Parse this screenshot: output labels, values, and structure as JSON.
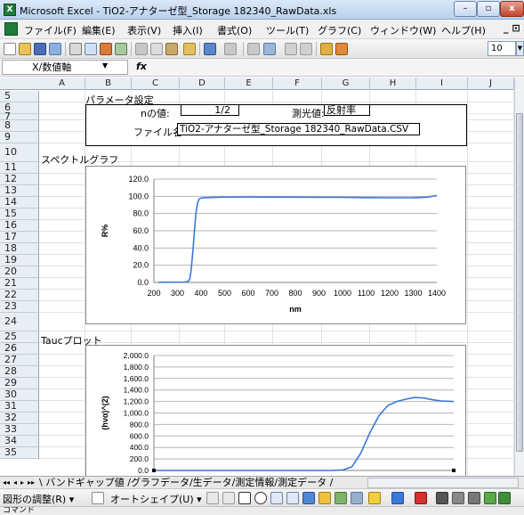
{
  "window": {
    "title": "Microsoft Excel - TiO2-アナターゼ型_Storage 182340_RawData.xls",
    "min_glyph": "–",
    "max_glyph": "▫",
    "close_glyph": "x"
  },
  "menubar": {
    "items": [
      "ファイル(F)",
      "編集(E)",
      "表示(V)",
      "挿入(I)",
      "書式(O)",
      "ツール(T)",
      "グラフ(C)",
      "ウィンドウ(W)",
      "ヘルプ(H)"
    ],
    "right_controls": "_ ⊡ x"
  },
  "toolbar": {
    "font_size": "10"
  },
  "formula_bar": {
    "name_box": "X/数値軸",
    "fx": "fx"
  },
  "columns": [
    "A",
    "B",
    "C",
    "D",
    "E",
    "F",
    "G",
    "H",
    "I",
    "J"
  ],
  "rows": [
    "5",
    "6",
    "7",
    "8",
    "9",
    "10",
    "11",
    "12",
    "13",
    "14",
    "15",
    "16",
    "17",
    "18",
    "19",
    "20",
    "21",
    "22",
    "23",
    "24",
    "25",
    "26",
    "27",
    "28",
    "29",
    "30",
    "31",
    "32",
    "33",
    "34",
    "35"
  ],
  "params": {
    "heading": "パラメータ設定",
    "n_label": "nの値:",
    "n_value": "1/2",
    "mode_label": "測光値:",
    "mode_value": "反射率",
    "file_label": "ファイル名:",
    "file_value": "TiO2-アナターゼ型_Storage 182340_RawData.CSV"
  },
  "spectrum_heading": "スペクトルグラフ",
  "tauc_heading": "Taucプロット",
  "sheet_tabs": {
    "nav": [
      "◂◂",
      "◂",
      "▸",
      "▸▸"
    ],
    "text": "\\ バンドギャップ値 /グラフデータ/生データ/測定情報/測定データ /"
  },
  "drawbar": {
    "adjust": "図形の調整(R) ▾",
    "autoshape": "オートシェイプ(U) ▾"
  },
  "status": "コマンド",
  "colors": {
    "series": "#3b78d8",
    "excel_green": "#1e7b3a"
  },
  "chart_data": [
    {
      "type": "line",
      "title": "",
      "xlabel": "nm",
      "ylabel": "R%",
      "xlim": [
        200,
        1400
      ],
      "ylim": [
        0,
        120
      ],
      "xticks": [
        "200",
        "300",
        "400",
        "500",
        "600",
        "700",
        "800",
        "900",
        "1000",
        "1100",
        "1200",
        "1300",
        "1400"
      ],
      "yticks": [
        "0.0",
        "20.0",
        "40.0",
        "60.0",
        "80.0",
        "100.0",
        "120.0"
      ],
      "x": [
        220,
        280,
        330,
        345,
        352,
        358,
        365,
        372,
        378,
        385,
        392,
        400,
        420,
        480,
        600,
        800,
        1000,
        1100,
        1200,
        1300,
        1360,
        1400
      ],
      "values": [
        0.2,
        0.3,
        0.5,
        1,
        4,
        15,
        35,
        60,
        80,
        92,
        97,
        98,
        98.5,
        99,
        99.2,
        99,
        98.8,
        98.5,
        98.3,
        98.4,
        99,
        101
      ]
    },
    {
      "type": "line",
      "title": "",
      "xlabel": "",
      "ylabel": "(hνα)^(2)",
      "ylim": [
        0,
        2000
      ],
      "yticks": [
        "0.0",
        "200.0",
        "400.0",
        "600.0",
        "800.0",
        "1,000.0",
        "1,200.0",
        "1,400.0",
        "1,600.0",
        "1,800.0",
        "2,000.0"
      ],
      "x": [
        0,
        10,
        20,
        30,
        40,
        50,
        55,
        60,
        63,
        66,
        69,
        72,
        75,
        78,
        81,
        84,
        87,
        90,
        93,
        96,
        100
      ],
      "values": [
        0,
        0,
        0,
        0,
        0,
        0,
        0,
        2,
        10,
        60,
        300,
        650,
        950,
        1130,
        1200,
        1240,
        1270,
        1260,
        1230,
        1210,
        1200
      ]
    }
  ]
}
